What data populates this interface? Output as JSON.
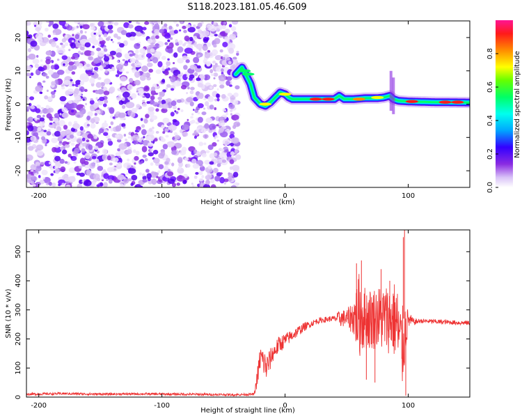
{
  "title": "S118.2023.181.05.46.G09",
  "chart_data": [
    {
      "type": "heatmap",
      "xlabel": "Height of straight line (km)",
      "ylabel": "Frequency (Hz)",
      "xlim": [
        -210,
        150
      ],
      "ylim": [
        -25,
        25
      ],
      "x_ticks": [
        -200,
        -100,
        0,
        100
      ],
      "y_ticks": [
        -20,
        -10,
        0,
        10,
        20
      ],
      "colorbar": {
        "label": "Normalized spectral amplitude",
        "range": [
          0,
          1
        ],
        "ticks": [
          "0.0",
          "0.2",
          "0.4",
          "0.6",
          "0.8"
        ],
        "colors": [
          "#ffffff",
          "#d9c2f7",
          "#8a2be2",
          "#5a00ff",
          "#0033ff",
          "#00a6ff",
          "#00ffee",
          "#00ff66",
          "#66ff00",
          "#ffff00",
          "#ff8c00",
          "#ff1a1a",
          "#ff1493"
        ]
      },
      "ridge": {
        "x": [
          -40,
          -35,
          -32,
          -28,
          -25,
          -20,
          -16,
          -12,
          -8,
          -4,
          0,
          3,
          6,
          10,
          20,
          30,
          40,
          44,
          48,
          55,
          65,
          75,
          80,
          85,
          88,
          92,
          100,
          120,
          150
        ],
        "hz": [
          9,
          11,
          9,
          6,
          2,
          0,
          -0.5,
          0.5,
          2,
          3.5,
          3,
          2,
          1.5,
          1.5,
          1.5,
          1.5,
          1.5,
          2.5,
          1.5,
          1.5,
          1.8,
          1.8,
          2,
          2.5,
          1.5,
          1,
          0.8,
          0.6,
          0.5
        ]
      },
      "noise_region_x": [
        -210,
        -38
      ]
    },
    {
      "type": "line",
      "xlabel": "Height of straight line (km)",
      "ylabel": "SNR (10 * v/v)",
      "xlim": [
        -210,
        150
      ],
      "ylim": [
        0,
        575
      ],
      "x_ticks": [
        -200,
        -100,
        0,
        100
      ],
      "y_ticks": [
        0,
        100,
        200,
        300,
        400,
        500
      ],
      "color": "#ee3333",
      "series": [
        {
          "x": [
            -210,
            -180,
            -150,
            -120,
            -90,
            -60,
            -40,
            -25,
            -22,
            -20,
            -15,
            -10,
            -5,
            0,
            5,
            10,
            15,
            20,
            25,
            30,
            35,
            40,
            45,
            50,
            55,
            60,
            65,
            70,
            75,
            80,
            85,
            90,
            95,
            98,
            100,
            105,
            110,
            120,
            130,
            140,
            150
          ],
          "y": [
            10,
            12,
            10,
            11,
            10,
            9,
            8,
            10,
            80,
            140,
            100,
            150,
            180,
            195,
            210,
            225,
            240,
            250,
            260,
            265,
            268,
            270,
            272,
            270,
            275,
            280,
            272,
            270,
            275,
            270,
            270,
            265,
            160,
            240,
            265,
            258,
            262,
            260,
            258,
            256,
            255
          ],
          "spread": [
            4,
            4,
            4,
            4,
            4,
            4,
            4,
            4,
            40,
            45,
            50,
            30,
            30,
            25,
            20,
            18,
            15,
            12,
            10,
            10,
            10,
            10,
            30,
            30,
            60,
            150,
            110,
            110,
            110,
            120,
            120,
            140,
            150,
            100,
            30,
            10,
            8,
            8,
            8,
            8,
            8
          ]
        }
      ]
    }
  ]
}
